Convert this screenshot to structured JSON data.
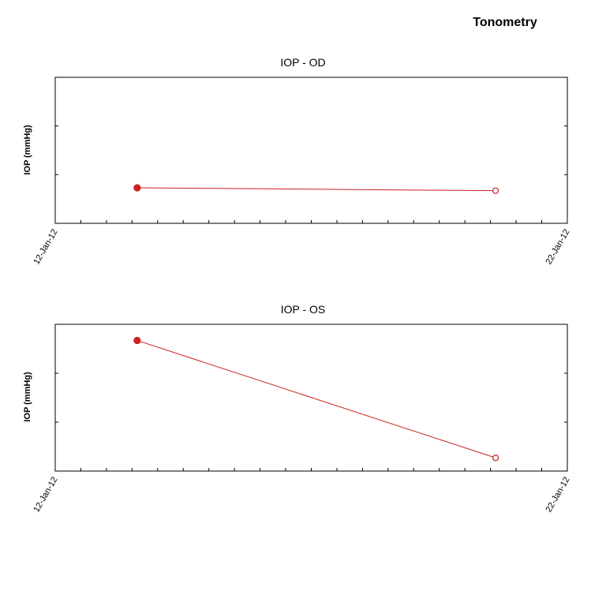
{
  "page": {
    "title": "Tonometry"
  },
  "chart_data": [
    {
      "type": "line",
      "title": "IOP - OD",
      "xlabel": "",
      "ylabel": "IOP (mmHg)",
      "x_tick_labels": [
        "12-Jan-12",
        "22-Jan-12"
      ],
      "xlim": [
        "2012-01-12",
        "2012-01-22"
      ],
      "ylim": [
        0,
        3
      ],
      "grid": false,
      "series": [
        {
          "x": [
            "2012-01-13.6",
            "2012-01-20.6"
          ],
          "y": [
            0.73,
            0.67
          ],
          "markers": [
            "filled",
            "open"
          ],
          "color": "#cc1f1f"
        }
      ]
    },
    {
      "type": "line",
      "title": "IOP - OS",
      "xlabel": "",
      "ylabel": "IOP (mmHg)",
      "x_tick_labels": [
        "12-Jan-12",
        "22-Jan-12"
      ],
      "xlim": [
        "2012-01-12",
        "2012-01-22"
      ],
      "ylim": [
        0,
        3
      ],
      "grid": false,
      "series": [
        {
          "x": [
            "2012-01-13.6",
            "2012-01-20.6"
          ],
          "y": [
            2.67,
            0.27
          ],
          "markers": [
            "filled",
            "open"
          ],
          "color": "#cc1f1f"
        }
      ]
    }
  ]
}
